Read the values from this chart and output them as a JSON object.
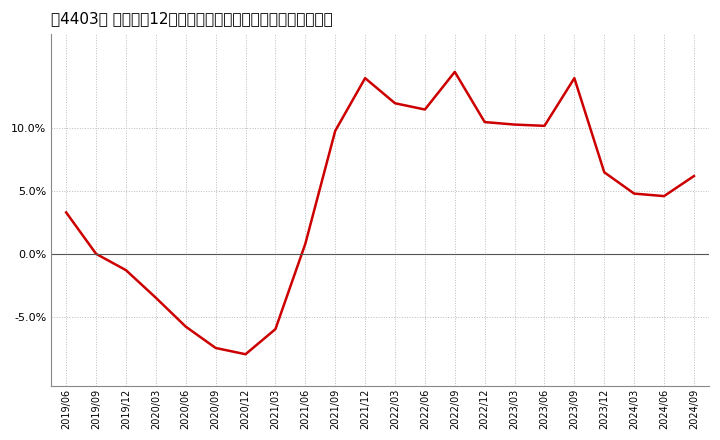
{
  "title": "［4403］ 卖上高の12か月移動合計の対前年同期増減率の推移",
  "line_color": "#cc0000",
  "dates": [
    "2019/06",
    "2019/09",
    "2019/12",
    "2020/03",
    "2020/06",
    "2020/09",
    "2020/12",
    "2021/03",
    "2021/06",
    "2021/09",
    "2021/12",
    "2022/03",
    "2022/06",
    "2022/09",
    "2022/12",
    "2023/03",
    "2023/06",
    "2023/09",
    "2023/12",
    "2024/03",
    "2024/06",
    "2024/09"
  ],
  "values": [
    3.3,
    0.0,
    -1.3,
    -3.5,
    -5.8,
    -7.5,
    -8.0,
    -6.0,
    0.8,
    9.8,
    14.0,
    12.0,
    11.5,
    14.5,
    10.5,
    10.3,
    10.2,
    14.0,
    6.5,
    4.8,
    4.6,
    6.2
  ],
  "yticks": [
    -5.0,
    0.0,
    5.0,
    10.0
  ],
  "ylim": [
    -10.5,
    17.5
  ],
  "title_fontsize": 11,
  "grid_color": "#aaaaaa",
  "line_width": 1.8,
  "bg_color": "#ffffff"
}
